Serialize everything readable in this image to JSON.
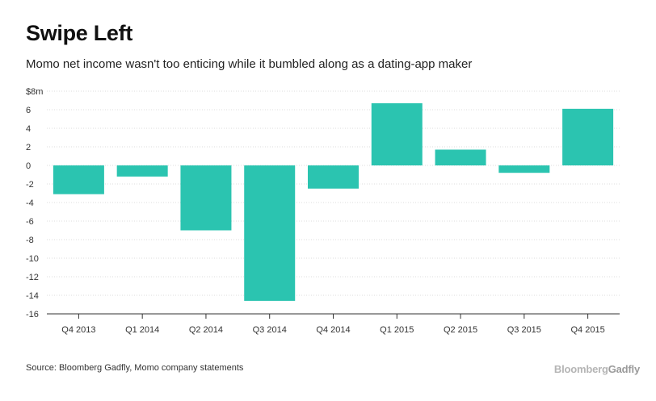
{
  "title": "Swipe Left",
  "subtitle": "Momo net income wasn't too enticing while it bumbled along as a dating-app maker",
  "source": "Source: Bloomberg Gadfly, Momo company statements",
  "logo": {
    "part1": "Bloomberg",
    "part2": "Gadfly"
  },
  "chart_data": {
    "type": "bar",
    "categories": [
      "Q4 2013",
      "Q1 2014",
      "Q2 2014",
      "Q3 2014",
      "Q4 2014",
      "Q1 2015",
      "Q2 2015",
      "Q3 2015",
      "Q4 2015"
    ],
    "values": [
      -3.1,
      -1.2,
      -7.0,
      -14.6,
      -2.5,
      6.7,
      1.7,
      -0.8,
      6.1
    ],
    "ylim": [
      -16,
      8
    ],
    "yticks": [
      8,
      6,
      4,
      2,
      0,
      -2,
      -4,
      -6,
      -8,
      -10,
      -12,
      -14,
      -16
    ],
    "ytick_labels": [
      "$8m",
      "6",
      "4",
      "2",
      "0",
      "-2",
      "-4",
      "-6",
      "-8",
      "-10",
      "-12",
      "-14",
      "-16"
    ],
    "xlabel": "",
    "ylabel": "",
    "bar_color": "#2bc4b0",
    "grid": true
  }
}
